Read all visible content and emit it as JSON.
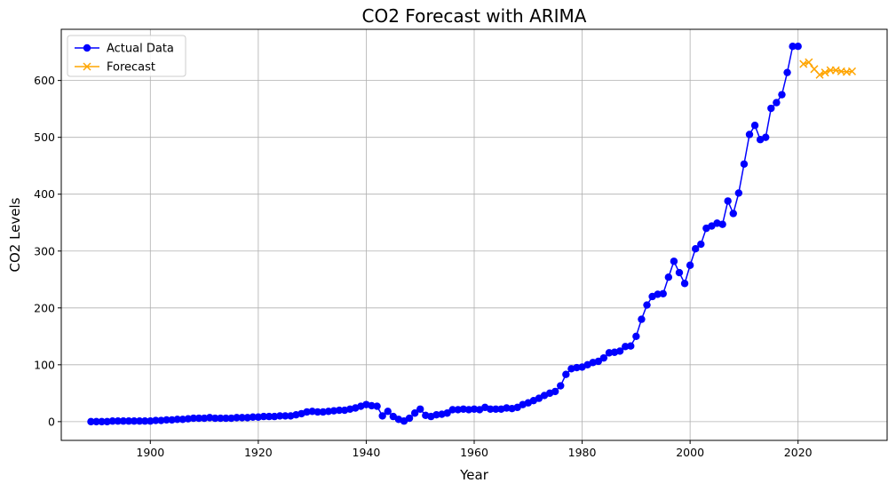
{
  "chart_data": {
    "type": "line",
    "title": "CO2 Forecast with ARIMA",
    "xlabel": "Year",
    "ylabel": "CO2 Levels",
    "xlim": [
      1883.5,
      2036.5
    ],
    "ylim": [
      -33,
      690
    ],
    "xticks": [
      1900,
      1920,
      1940,
      1960,
      1980,
      2000,
      2020
    ],
    "yticks": [
      0,
      100,
      200,
      300,
      400,
      500,
      600
    ],
    "grid": true,
    "legend_position": "top-left",
    "series": [
      {
        "name": "Actual Data",
        "color": "#0000ff",
        "marker": "circle",
        "x": [
          1889,
          1890,
          1891,
          1892,
          1893,
          1894,
          1895,
          1896,
          1897,
          1898,
          1899,
          1900,
          1901,
          1902,
          1903,
          1904,
          1905,
          1906,
          1907,
          1908,
          1909,
          1910,
          1911,
          1912,
          1913,
          1914,
          1915,
          1916,
          1917,
          1918,
          1919,
          1920,
          1921,
          1922,
          1923,
          1924,
          1925,
          1926,
          1927,
          1928,
          1929,
          1930,
          1931,
          1932,
          1933,
          1934,
          1935,
          1936,
          1937,
          1938,
          1939,
          1940,
          1941,
          1942,
          1943,
          1944,
          1945,
          1946,
          1947,
          1948,
          1949,
          1950,
          1951,
          1952,
          1953,
          1954,
          1955,
          1956,
          1957,
          1958,
          1959,
          1960,
          1961,
          1962,
          1963,
          1964,
          1965,
          1966,
          1967,
          1968,
          1969,
          1970,
          1971,
          1972,
          1973,
          1974,
          1975,
          1976,
          1977,
          1978,
          1979,
          1980,
          1981,
          1982,
          1983,
          1984,
          1985,
          1986,
          1987,
          1988,
          1989,
          1990,
          1991,
          1992,
          1993,
          1994,
          1995,
          1996,
          1997,
          1998,
          1999,
          2000,
          2001,
          2002,
          2003,
          2004,
          2005,
          2006,
          2007,
          2008,
          2009,
          2010,
          2011,
          2012,
          2013,
          2014,
          2015,
          2016,
          2017,
          2018,
          2019,
          2020
        ],
        "y": [
          0,
          0,
          0,
          0,
          1,
          1,
          1,
          1,
          1,
          1,
          1,
          1,
          2,
          2,
          3,
          3,
          4,
          4,
          5,
          6,
          6,
          6,
          7,
          6,
          6,
          6,
          6,
          7,
          7,
          7,
          8,
          8,
          9,
          9,
          9,
          10,
          10,
          10,
          12,
          14,
          17,
          18,
          17,
          17,
          18,
          19,
          20,
          20,
          22,
          24,
          27,
          30,
          28,
          27,
          10,
          18,
          9,
          4,
          1,
          6,
          15,
          22,
          11,
          9,
          12,
          13,
          15,
          21,
          21,
          22,
          21,
          22,
          21,
          25,
          22,
          22,
          22,
          24,
          23,
          25,
          30,
          33,
          37,
          41,
          46,
          50,
          53,
          63,
          83,
          93,
          95,
          96,
          100,
          104,
          106,
          112,
          121,
          122,
          124,
          132,
          133,
          150,
          180,
          205,
          220,
          224,
          225,
          254,
          282,
          262,
          243,
          275,
          304,
          312,
          340,
          344,
          349,
          347,
          388,
          366,
          402,
          453,
          505,
          521,
          496,
          500,
          551,
          561,
          575,
          614,
          660,
          660
        ]
      },
      {
        "name": "Forecast",
        "color": "#ffa500",
        "marker": "x",
        "x": [
          2021,
          2022,
          2023,
          2024,
          2025,
          2026,
          2027,
          2028,
          2029,
          2030
        ],
        "y": [
          629,
          632,
          620,
          610,
          614,
          618,
          618,
          616,
          615,
          616
        ]
      }
    ]
  }
}
